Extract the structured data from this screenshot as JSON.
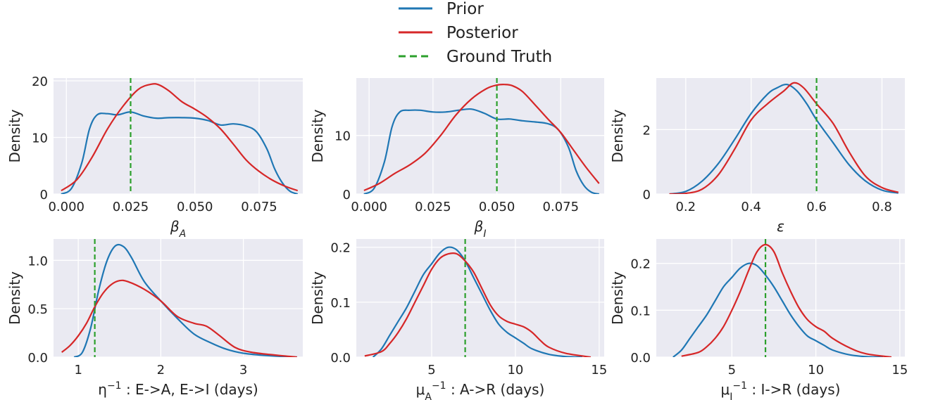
{
  "legend": [
    {
      "label": "Prior",
      "color": "#1f77b4",
      "dash": false
    },
    {
      "label": "Posterior",
      "color": "#d62728",
      "dash": false
    },
    {
      "label": "Ground Truth",
      "color": "#2ca02c",
      "dash": true
    }
  ],
  "chart_data": [
    {
      "type": "line",
      "xlabel": "β_A",
      "ylabel": "Density",
      "xlim": [
        -0.005,
        0.092
      ],
      "ylim": [
        0,
        20.5
      ],
      "xticks": [
        0.0,
        0.025,
        0.05,
        0.075
      ],
      "xtick_labels": [
        "0.000",
        "0.025",
        "0.050",
        "0.075"
      ],
      "yticks": [
        0,
        10,
        20
      ],
      "ytick_labels": [
        "0",
        "10",
        "20"
      ],
      "ground_truth": 0.025,
      "series": [
        {
          "name": "Prior",
          "x": [
            -0.002,
            0.002,
            0.006,
            0.009,
            0.012,
            0.016,
            0.02,
            0.025,
            0.03,
            0.035,
            0.04,
            0.045,
            0.05,
            0.055,
            0.06,
            0.065,
            0.07,
            0.074,
            0.078,
            0.081,
            0.084,
            0.087,
            0.09
          ],
          "y": [
            0.0,
            1.0,
            5.5,
            11.5,
            14.0,
            14.2,
            14.0,
            14.5,
            13.8,
            13.4,
            13.5,
            13.5,
            13.4,
            13.0,
            12.2,
            12.4,
            12.0,
            11.0,
            8.0,
            4.5,
            2.0,
            0.5,
            0.0
          ]
        },
        {
          "name": "Posterior",
          "x": [
            -0.002,
            0.004,
            0.01,
            0.016,
            0.022,
            0.028,
            0.033,
            0.036,
            0.04,
            0.045,
            0.05,
            0.055,
            0.06,
            0.065,
            0.07,
            0.075,
            0.08,
            0.085,
            0.09
          ],
          "y": [
            0.6,
            2.5,
            6.5,
            11.5,
            15.5,
            18.5,
            19.4,
            19.3,
            18.2,
            16.3,
            15.0,
            13.5,
            11.5,
            8.8,
            6.0,
            4.0,
            2.5,
            1.4,
            0.6
          ]
        }
      ]
    },
    {
      "type": "line",
      "xlabel": "β_I",
      "ylabel": "Density",
      "xlim": [
        -0.005,
        0.092
      ],
      "ylim": [
        0,
        19.8
      ],
      "xticks": [
        0.0,
        0.025,
        0.05,
        0.075
      ],
      "xtick_labels": [
        "0.000",
        "0.025",
        "0.050",
        "0.075"
      ],
      "yticks": [
        0,
        10
      ],
      "ytick_labels": [
        "0",
        "10"
      ],
      "ground_truth": 0.05,
      "series": [
        {
          "name": "Prior",
          "x": [
            -0.002,
            0.002,
            0.006,
            0.009,
            0.012,
            0.016,
            0.02,
            0.025,
            0.03,
            0.035,
            0.04,
            0.045,
            0.05,
            0.055,
            0.06,
            0.065,
            0.07,
            0.074,
            0.078,
            0.081,
            0.084,
            0.087,
            0.09
          ],
          "y": [
            0.0,
            1.0,
            5.5,
            11.5,
            14.0,
            14.3,
            14.3,
            14.0,
            14.0,
            14.3,
            14.5,
            13.8,
            12.8,
            12.8,
            12.5,
            12.3,
            12.0,
            11.0,
            8.0,
            4.0,
            1.5,
            0.3,
            0.0
          ]
        },
        {
          "name": "Posterior",
          "x": [
            -0.002,
            0.004,
            0.01,
            0.016,
            0.022,
            0.028,
            0.034,
            0.04,
            0.046,
            0.05,
            0.053,
            0.056,
            0.06,
            0.065,
            0.07,
            0.075,
            0.08,
            0.085,
            0.09
          ],
          "y": [
            0.6,
            1.8,
            3.5,
            5.0,
            7.0,
            10.0,
            13.5,
            16.2,
            18.0,
            18.6,
            18.7,
            18.5,
            17.5,
            15.2,
            12.8,
            10.5,
            7.5,
            4.5,
            1.8
          ]
        }
      ]
    },
    {
      "type": "line",
      "xlabel": "ε",
      "ylabel": "Density",
      "xlim": [
        0.11,
        0.87
      ],
      "ylim": [
        0,
        3.6
      ],
      "xticks": [
        0.2,
        0.4,
        0.6,
        0.8
      ],
      "xtick_labels": [
        "0.2",
        "0.4",
        "0.6",
        "0.8"
      ],
      "yticks": [
        0,
        2
      ],
      "ytick_labels": [
        "0",
        "2"
      ],
      "ground_truth": 0.6,
      "series": [
        {
          "name": "Prior",
          "x": [
            0.15,
            0.2,
            0.25,
            0.3,
            0.35,
            0.4,
            0.45,
            0.48,
            0.51,
            0.54,
            0.57,
            0.6,
            0.65,
            0.7,
            0.75,
            0.8,
            0.85
          ],
          "y": [
            0.0,
            0.08,
            0.4,
            0.95,
            1.7,
            2.5,
            3.1,
            3.3,
            3.4,
            3.2,
            2.8,
            2.3,
            1.6,
            0.9,
            0.4,
            0.12,
            0.03
          ]
        },
        {
          "name": "Posterior",
          "x": [
            0.15,
            0.2,
            0.25,
            0.3,
            0.35,
            0.4,
            0.45,
            0.5,
            0.53,
            0.56,
            0.6,
            0.65,
            0.7,
            0.75,
            0.8,
            0.85
          ],
          "y": [
            0.0,
            0.02,
            0.15,
            0.6,
            1.4,
            2.3,
            2.8,
            3.2,
            3.45,
            3.3,
            2.8,
            2.2,
            1.3,
            0.55,
            0.2,
            0.05
          ]
        }
      ]
    },
    {
      "type": "line",
      "xlabel": "η⁻¹ : E->A, E->I (days)",
      "ylabel": "Density",
      "xlim": [
        0.7,
        3.72
      ],
      "ylim": [
        0,
        1.22
      ],
      "xticks": [
        1,
        2,
        3
      ],
      "xtick_labels": [
        "1",
        "2",
        "3"
      ],
      "yticks": [
        0,
        0.5,
        1.0
      ],
      "ytick_labels": [
        "0.0",
        "0.5",
        "1.0"
      ],
      "ground_truth": 1.2,
      "series": [
        {
          "name": "Prior",
          "x": [
            0.95,
            1.05,
            1.15,
            1.25,
            1.35,
            1.45,
            1.55,
            1.65,
            1.8,
            2.0,
            2.2,
            2.4,
            2.6,
            2.8,
            3.0,
            3.3,
            3.65
          ],
          "y": [
            0.0,
            0.05,
            0.3,
            0.7,
            1.0,
            1.15,
            1.14,
            1.02,
            0.78,
            0.58,
            0.4,
            0.24,
            0.15,
            0.08,
            0.04,
            0.015,
            0.0
          ]
        },
        {
          "name": "Posterior",
          "x": [
            0.8,
            0.9,
            1.0,
            1.1,
            1.2,
            1.3,
            1.4,
            1.5,
            1.6,
            1.8,
            2.0,
            2.2,
            2.4,
            2.55,
            2.7,
            2.9,
            3.1,
            3.4,
            3.65
          ],
          "y": [
            0.05,
            0.12,
            0.22,
            0.35,
            0.52,
            0.66,
            0.75,
            0.79,
            0.78,
            0.7,
            0.58,
            0.42,
            0.35,
            0.32,
            0.23,
            0.1,
            0.05,
            0.02,
            0.0
          ]
        }
      ]
    },
    {
      "type": "line",
      "xlabel": "μ_A⁻¹ : A->R (days)",
      "ylabel": "Density",
      "xlim": [
        0.5,
        15.3
      ],
      "ylim": [
        0,
        0.215
      ],
      "xticks": [
        5,
        10,
        15
      ],
      "xtick_labels": [
        "5",
        "10",
        "15"
      ],
      "yticks": [
        0,
        0.1,
        0.2
      ],
      "ytick_labels": [
        "0.0",
        "0.1",
        "0.2"
      ],
      "ground_truth": 7,
      "series": [
        {
          "name": "Prior",
          "x": [
            1.5,
            2.0,
            2.5,
            3.0,
            3.5,
            4.0,
            4.5,
            5.0,
            5.5,
            6.0,
            6.5,
            7.0,
            7.5,
            8.0,
            8.5,
            9.0,
            9.5,
            10.0,
            10.5,
            11.0,
            12.0,
            13.0,
            14.0
          ],
          "y": [
            0.0,
            0.015,
            0.04,
            0.065,
            0.09,
            0.12,
            0.15,
            0.17,
            0.19,
            0.2,
            0.195,
            0.175,
            0.145,
            0.115,
            0.085,
            0.06,
            0.045,
            0.035,
            0.025,
            0.015,
            0.005,
            0.001,
            0.0
          ]
        },
        {
          "name": "Posterior",
          "x": [
            1.0,
            2.0,
            2.5,
            3.0,
            3.5,
            4.0,
            4.5,
            5.0,
            5.5,
            6.0,
            6.5,
            7.0,
            7.5,
            8.0,
            8.5,
            9.0,
            9.5,
            10.0,
            10.5,
            11.0,
            11.5,
            12.0,
            13.0,
            14.5
          ],
          "y": [
            0.002,
            0.01,
            0.025,
            0.045,
            0.07,
            0.1,
            0.13,
            0.16,
            0.18,
            0.188,
            0.188,
            0.175,
            0.155,
            0.125,
            0.095,
            0.075,
            0.065,
            0.06,
            0.055,
            0.045,
            0.03,
            0.018,
            0.007,
            0.0
          ]
        }
      ]
    },
    {
      "type": "line",
      "xlabel": "μ_I⁻¹ : I->R (days)",
      "ylabel": "Density",
      "xlim": [
        0.5,
        15.3
      ],
      "ylim": [
        0,
        0.252
      ],
      "xticks": [
        5,
        10,
        15
      ],
      "xtick_labels": [
        "5",
        "10",
        "15"
      ],
      "yticks": [
        0,
        0.1,
        0.2
      ],
      "ytick_labels": [
        "0.0",
        "0.1",
        "0.2"
      ],
      "ground_truth": 7,
      "series": [
        {
          "name": "Prior",
          "x": [
            1.5,
            2.0,
            2.5,
            3.0,
            3.5,
            4.0,
            4.5,
            5.0,
            5.5,
            6.0,
            6.5,
            7.0,
            7.5,
            8.0,
            8.5,
            9.0,
            9.5,
            10.0,
            10.5,
            11.0,
            12.0,
            13.0,
            14.0
          ],
          "y": [
            0.0,
            0.015,
            0.04,
            0.065,
            0.09,
            0.12,
            0.15,
            0.17,
            0.19,
            0.2,
            0.195,
            0.175,
            0.15,
            0.12,
            0.09,
            0.065,
            0.045,
            0.035,
            0.025,
            0.015,
            0.005,
            0.001,
            0.0
          ]
        },
        {
          "name": "Posterior",
          "x": [
            2.0,
            3.0,
            3.5,
            4.0,
            4.5,
            5.0,
            5.5,
            6.0,
            6.5,
            7.0,
            7.5,
            8.0,
            8.5,
            9.0,
            9.5,
            10.0,
            10.5,
            11.0,
            12.0,
            13.0,
            14.5
          ],
          "y": [
            0.002,
            0.01,
            0.022,
            0.04,
            0.065,
            0.1,
            0.14,
            0.185,
            0.225,
            0.24,
            0.225,
            0.18,
            0.14,
            0.105,
            0.08,
            0.065,
            0.055,
            0.04,
            0.02,
            0.007,
            0.0
          ]
        }
      ]
    }
  ]
}
